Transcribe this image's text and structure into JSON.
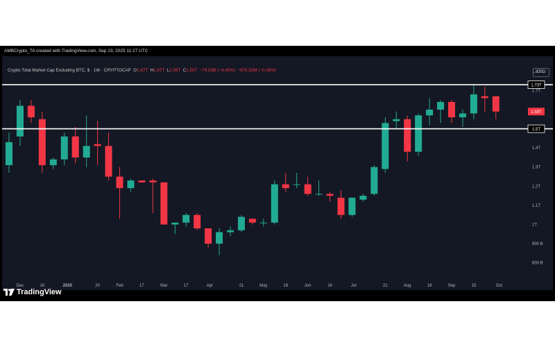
{
  "header": {
    "attribution": "AMBCrypto_TA created with TradingView.com, Sep 23, 2025 11:27 UTC"
  },
  "legend": {
    "symbol": "Crypto Total Market Cap Excluding BTC, $ · 1W · CRYPTOCAP",
    "open_label": "O",
    "open": "1.67T",
    "high_label": "H",
    "high": "1.67T",
    "low_label": "L",
    "low": "1.55T",
    "close_label": "C",
    "close": "1.59T",
    "change": "−74.03B (−4.45%)",
    "volume": "−975.92M (−0.06%)"
  },
  "currency": "USD",
  "branding": {
    "logo_text": "TradingView"
  },
  "colors": {
    "up": "#22ab94",
    "down": "#f23645",
    "background": "#141824",
    "level_line": "#ffffff"
  },
  "chart_data": {
    "type": "candlestick",
    "unit": "USD",
    "interval": "1W",
    "y_axis_ticks": [
      "800 B",
      "900 B",
      "1T",
      "1.1T",
      "1.2T",
      "1.3T",
      "1.4T",
      "1.5T",
      "1.6T",
      "1.7T",
      "1.8T"
    ],
    "y_axis_tick_values": [
      0.8,
      0.9,
      1.0,
      1.1,
      1.2,
      1.3,
      1.4,
      1.5,
      1.6,
      1.7,
      1.8
    ],
    "ylim": [
      0.73,
      1.85
    ],
    "x_axis_ticks": [
      {
        "label": "Dec",
        "date": "2024-12-02"
      },
      {
        "label": "16",
        "date": "2024-12-16"
      },
      {
        "label": "2025",
        "date": "2025-01-01"
      },
      {
        "label": "20",
        "date": "2025-01-20"
      },
      {
        "label": "Feb",
        "date": "2025-02-03"
      },
      {
        "label": "17",
        "date": "2025-02-17"
      },
      {
        "label": "Mar",
        "date": "2025-03-03"
      },
      {
        "label": "17",
        "date": "2025-03-17"
      },
      {
        "label": "Apr",
        "date": "2025-04-01"
      },
      {
        "label": "21",
        "date": "2025-04-21"
      },
      {
        "label": "May",
        "date": "2025-05-05"
      },
      {
        "label": "19",
        "date": "2025-05-19"
      },
      {
        "label": "Jun",
        "date": "2025-06-02"
      },
      {
        "label": "16",
        "date": "2025-06-16"
      },
      {
        "label": "Jul",
        "date": "2025-07-01"
      },
      {
        "label": "21",
        "date": "2025-07-21"
      },
      {
        "label": "Aug",
        "date": "2025-08-04"
      },
      {
        "label": "18",
        "date": "2025-08-18"
      },
      {
        "label": "Sep",
        "date": "2025-09-01"
      },
      {
        "label": "15",
        "date": "2025-09-15"
      },
      {
        "label": "Oct",
        "date": "2025-10-01"
      }
    ],
    "candles": [
      {
        "date": "2024-11-25",
        "open": 1.31,
        "high": 1.48,
        "low": 1.27,
        "close": 1.43
      },
      {
        "date": "2024-12-02",
        "open": 1.46,
        "high": 1.65,
        "low": 1.41,
        "close": 1.62
      },
      {
        "date": "2024-12-09",
        "open": 1.62,
        "high": 1.65,
        "low": 1.53,
        "close": 1.56
      },
      {
        "date": "2024-12-16",
        "open": 1.55,
        "high": 1.59,
        "low": 1.27,
        "close": 1.31
      },
      {
        "date": "2024-12-23",
        "open": 1.31,
        "high": 1.35,
        "low": 1.29,
        "close": 1.34
      },
      {
        "date": "2024-12-30",
        "open": 1.34,
        "high": 1.48,
        "low": 1.31,
        "close": 1.46
      },
      {
        "date": "2025-01-06",
        "open": 1.46,
        "high": 1.51,
        "low": 1.32,
        "close": 1.35
      },
      {
        "date": "2025-01-13",
        "open": 1.35,
        "high": 1.57,
        "low": 1.3,
        "close": 1.41
      },
      {
        "date": "2025-01-20",
        "open": 1.42,
        "high": 1.54,
        "low": 1.31,
        "close": 1.41
      },
      {
        "date": "2025-01-27",
        "open": 1.41,
        "high": 1.48,
        "low": 1.23,
        "close": 1.25
      },
      {
        "date": "2025-02-03",
        "open": 1.25,
        "high": 1.3,
        "low": 1.03,
        "close": 1.19
      },
      {
        "date": "2025-02-10",
        "open": 1.19,
        "high": 1.24,
        "low": 1.17,
        "close": 1.23
      },
      {
        "date": "2025-02-17",
        "open": 1.23,
        "high": 1.23,
        "low": 1.22,
        "close": 1.22
      },
      {
        "date": "2025-02-24",
        "open": 1.23,
        "high": 1.24,
        "low": 1.06,
        "close": 1.22
      },
      {
        "date": "2025-03-03",
        "open": 1.22,
        "high": 1.22,
        "low": 1.0,
        "close": 1.0
      },
      {
        "date": "2025-03-10",
        "open": 1.0,
        "high": 1.01,
        "low": 0.95,
        "close": 1.01
      },
      {
        "date": "2025-03-17",
        "open": 1.01,
        "high": 1.06,
        "low": 0.99,
        "close": 1.05
      },
      {
        "date": "2025-03-24",
        "open": 1.05,
        "high": 1.06,
        "low": 0.97,
        "close": 0.98
      },
      {
        "date": "2025-03-31",
        "open": 0.98,
        "high": 0.98,
        "low": 0.88,
        "close": 0.9
      },
      {
        "date": "2025-04-07",
        "open": 0.9,
        "high": 0.98,
        "low": 0.84,
        "close": 0.96
      },
      {
        "date": "2025-04-14",
        "open": 0.96,
        "high": 0.99,
        "low": 0.94,
        "close": 0.97
      },
      {
        "date": "2025-04-21",
        "open": 0.97,
        "high": 1.05,
        "low": 0.96,
        "close": 1.04
      },
      {
        "date": "2025-04-28",
        "open": 1.03,
        "high": 1.03,
        "low": 1.0,
        "close": 1.01
      },
      {
        "date": "2025-05-05",
        "open": 1.01,
        "high": 1.03,
        "low": 0.99,
        "close": 1.01
      },
      {
        "date": "2025-05-12",
        "open": 1.01,
        "high": 1.23,
        "low": 1.0,
        "close": 1.21
      },
      {
        "date": "2025-05-19",
        "open": 1.21,
        "high": 1.27,
        "low": 1.17,
        "close": 1.19
      },
      {
        "date": "2025-05-26",
        "open": 1.21,
        "high": 1.27,
        "low": 1.19,
        "close": 1.21
      },
      {
        "date": "2025-06-02",
        "open": 1.21,
        "high": 1.25,
        "low": 1.15,
        "close": 1.16
      },
      {
        "date": "2025-06-09",
        "open": 1.16,
        "high": 1.23,
        "low": 1.15,
        "close": 1.16
      },
      {
        "date": "2025-06-16",
        "open": 1.16,
        "high": 1.17,
        "low": 1.12,
        "close": 1.15
      },
      {
        "date": "2025-06-23",
        "open": 1.14,
        "high": 1.18,
        "low": 1.03,
        "close": 1.05
      },
      {
        "date": "2025-06-30",
        "open": 1.05,
        "high": 1.14,
        "low": 1.04,
        "close": 1.14
      },
      {
        "date": "2025-07-07",
        "open": 1.13,
        "high": 1.16,
        "low": 1.12,
        "close": 1.15
      },
      {
        "date": "2025-07-14",
        "open": 1.16,
        "high": 1.31,
        "low": 1.15,
        "close": 1.3
      },
      {
        "date": "2025-07-21",
        "open": 1.29,
        "high": 1.56,
        "low": 1.27,
        "close": 1.53
      },
      {
        "date": "2025-07-28",
        "open": 1.54,
        "high": 1.59,
        "low": 1.5,
        "close": 1.55
      },
      {
        "date": "2025-08-04",
        "open": 1.55,
        "high": 1.57,
        "low": 1.33,
        "close": 1.38
      },
      {
        "date": "2025-08-11",
        "open": 1.38,
        "high": 1.58,
        "low": 1.36,
        "close": 1.57
      },
      {
        "date": "2025-08-18",
        "open": 1.57,
        "high": 1.66,
        "low": 1.52,
        "close": 1.6
      },
      {
        "date": "2025-08-25",
        "open": 1.6,
        "high": 1.65,
        "low": 1.53,
        "close": 1.64
      },
      {
        "date": "2025-09-01",
        "open": 1.64,
        "high": 1.65,
        "low": 1.53,
        "close": 1.56
      },
      {
        "date": "2025-09-08",
        "open": 1.56,
        "high": 1.6,
        "low": 1.51,
        "close": 1.58
      },
      {
        "date": "2025-09-15",
        "open": 1.58,
        "high": 1.73,
        "low": 1.55,
        "close": 1.68
      },
      {
        "date": "2025-09-22",
        "open": 1.67,
        "high": 1.72,
        "low": 1.59,
        "close": 1.66
      },
      {
        "date": "2025-09-29",
        "open": 1.67,
        "high": 1.67,
        "low": 1.55,
        "close": 1.59
      }
    ],
    "horizontal_levels": [
      {
        "value": 1.73,
        "label": "1.73T"
      },
      {
        "value": 1.5,
        "label": "1.5T"
      }
    ],
    "last_price": {
      "value": 1.59,
      "label": "1.59T"
    }
  }
}
